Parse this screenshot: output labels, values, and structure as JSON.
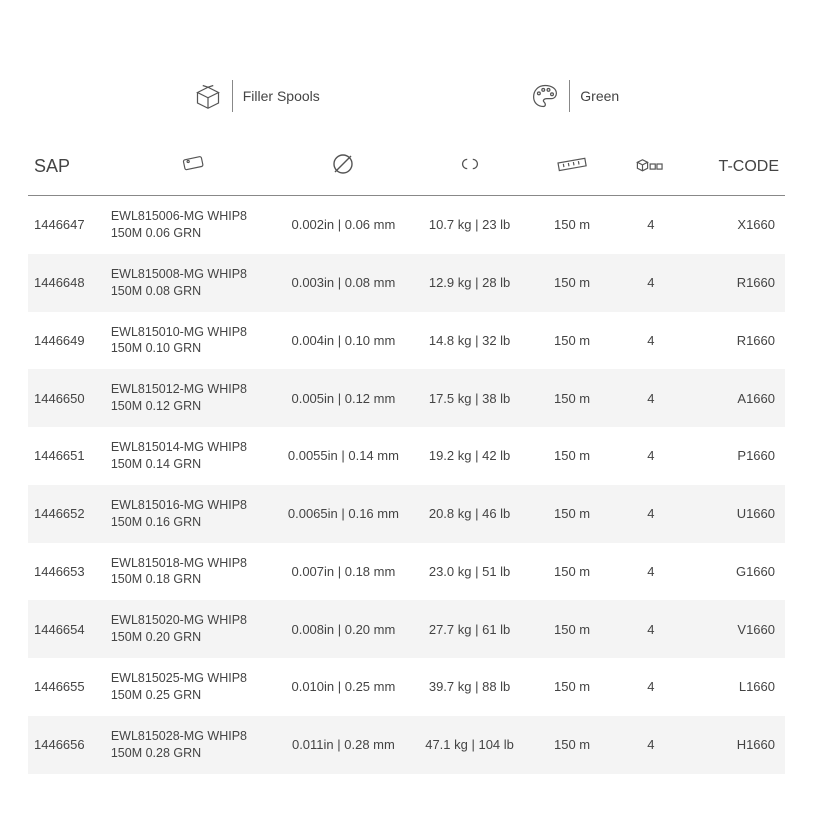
{
  "top": {
    "spool_label": "Filler Spools",
    "color_label": "Green"
  },
  "columns": {
    "sap": "SAP",
    "tcode": "T-CODE"
  },
  "rows": [
    {
      "sap": "1446647",
      "desc": "EWL815006-MG WHIP8 150M 0.06 GRN",
      "dia": "0.002in | 0.06 mm",
      "wt": "10.7 kg | 23 lb",
      "len": "150 m",
      "qty": "4",
      "tcode": "X1660"
    },
    {
      "sap": "1446648",
      "desc": "EWL815008-MG WHIP8 150M 0.08 GRN",
      "dia": "0.003in | 0.08 mm",
      "wt": "12.9 kg | 28 lb",
      "len": "150 m",
      "qty": "4",
      "tcode": "R1660"
    },
    {
      "sap": "1446649",
      "desc": "EWL815010-MG WHIP8 150M 0.10 GRN",
      "dia": "0.004in | 0.10 mm",
      "wt": "14.8 kg | 32 lb",
      "len": "150 m",
      "qty": "4",
      "tcode": "R1660"
    },
    {
      "sap": "1446650",
      "desc": "EWL815012-MG WHIP8 150M 0.12 GRN",
      "dia": "0.005in | 0.12 mm",
      "wt": "17.5 kg | 38 lb",
      "len": "150 m",
      "qty": "4",
      "tcode": "A1660"
    },
    {
      "sap": "1446651",
      "desc": "EWL815014-MG WHIP8 150M 0.14 GRN",
      "dia": "0.0055in | 0.14 mm",
      "wt": "19.2 kg | 42 lb",
      "len": "150 m",
      "qty": "4",
      "tcode": "P1660"
    },
    {
      "sap": "1446652",
      "desc": "EWL815016-MG WHIP8 150M 0.16 GRN",
      "dia": "0.0065in | 0.16 mm",
      "wt": "20.8 kg | 46 lb",
      "len": "150 m",
      "qty": "4",
      "tcode": "U1660"
    },
    {
      "sap": "1446653",
      "desc": "EWL815018-MG WHIP8 150M 0.18 GRN",
      "dia": "0.007in | 0.18 mm",
      "wt": "23.0 kg | 51 lb",
      "len": "150 m",
      "qty": "4",
      "tcode": "G1660"
    },
    {
      "sap": "1446654",
      "desc": "EWL815020-MG WHIP8 150M 0.20 GRN",
      "dia": "0.008in | 0.20 mm",
      "wt": "27.7 kg | 61 lb",
      "len": "150 m",
      "qty": "4",
      "tcode": "V1660"
    },
    {
      "sap": "1446655",
      "desc": "EWL815025-MG WHIP8 150M 0.25 GRN",
      "dia": "0.010in | 0.25 mm",
      "wt": "39.7 kg | 88 lb",
      "len": "150 m",
      "qty": "4",
      "tcode": "L1660"
    },
    {
      "sap": "1446656",
      "desc": "EWL815028-MG WHIP8 150M 0.28 GRN",
      "dia": "0.011in | 0.28 mm",
      "wt": "47.1 kg | 104 lb",
      "len": "150 m",
      "qty": "4",
      "tcode": "H1660"
    }
  ]
}
